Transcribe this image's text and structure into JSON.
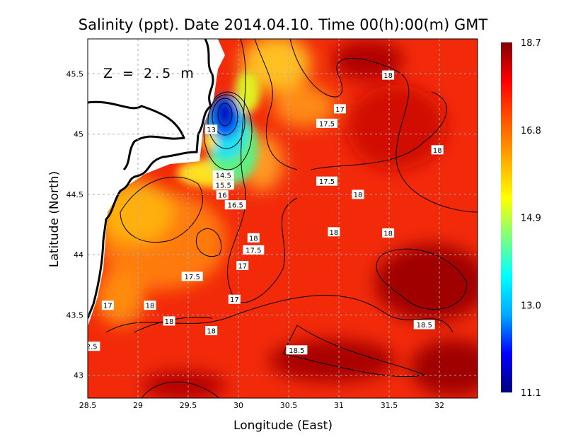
{
  "chart_data": {
    "type": "heatmap",
    "title": "Salinity (ppt). Date 2014.04.10. Time 00(h):00(m) GMT",
    "xlabel": "Longitude (East)",
    "ylabel": "Latitude (North)",
    "xlim": [
      28.5,
      32.38
    ],
    "ylim": [
      42.81,
      45.79
    ],
    "xticks": [
      28.5,
      29,
      29.5,
      30,
      30.5,
      31,
      31.5,
      32
    ],
    "xtick_labels": [
      "28.5",
      "29",
      "29.5",
      "30",
      "30.5",
      "31",
      "31.5",
      "32"
    ],
    "yticks": [
      43,
      43.5,
      44,
      44.5,
      45,
      45.5
    ],
    "ytick_labels": [
      "43",
      "43.5",
      "44",
      "44.5",
      "45",
      "45.5"
    ],
    "grid": true,
    "annotation": "Z = 2.5 m",
    "colorbar": {
      "range": [
        11.1,
        18.7
      ],
      "tick_values": [
        18.7,
        16.8,
        14.9,
        13.0,
        11.1
      ],
      "tick_labels": [
        "18.7",
        "16.8",
        "14.9",
        "13.0",
        "11.1"
      ],
      "placement": "right",
      "colormap": [
        "#00007f",
        "#0000ff",
        "#00aaff",
        "#00ffff",
        "#7fff7f",
        "#ffff00",
        "#ffaa00",
        "#ff5500",
        "#ff0000",
        "#7f0000"
      ]
    },
    "contour_labels": [
      {
        "text": "18",
        "lon": 31.49,
        "lat": 45.49
      },
      {
        "text": "17",
        "lon": 31.01,
        "lat": 45.21
      },
      {
        "text": "17.5",
        "lon": 30.88,
        "lat": 45.09
      },
      {
        "text": "18",
        "lon": 31.98,
        "lat": 44.87
      },
      {
        "text": "13",
        "lon": 29.73,
        "lat": 45.04
      },
      {
        "text": "17.5",
        "lon": 30.88,
        "lat": 44.61
      },
      {
        "text": "14.5",
        "lon": 29.85,
        "lat": 44.66
      },
      {
        "text": "15.5",
        "lon": 29.85,
        "lat": 44.6
      },
      {
        "text": "16",
        "lon": 29.84,
        "lat": 44.56
      },
      {
        "text": "16.5",
        "lon": 29.97,
        "lat": 44.49
      },
      {
        "text": "18",
        "lon": 31.19,
        "lat": 44.5
      },
      {
        "text": "18",
        "lon": 30.95,
        "lat": 44.19
      },
      {
        "text": "18",
        "lon": 31.49,
        "lat": 44.18
      },
      {
        "text": "18",
        "lon": 30.15,
        "lat": 44.14
      },
      {
        "text": "17.5",
        "lon": 30.15,
        "lat": 44.04
      },
      {
        "text": "17",
        "lon": 30.04,
        "lat": 43.91
      },
      {
        "text": "17.5",
        "lon": 29.54,
        "lat": 43.82
      },
      {
        "text": "17",
        "lon": 29.96,
        "lat": 43.63
      },
      {
        "text": "17",
        "lon": 28.7,
        "lat": 43.58
      },
      {
        "text": "18",
        "lon": 29.12,
        "lat": 43.58
      },
      {
        "text": "18",
        "lon": 29.31,
        "lat": 43.45
      },
      {
        "text": "18",
        "lon": 29.73,
        "lat": 43.37
      },
      {
        "text": "18.5",
        "lon": 31.85,
        "lat": 43.42
      },
      {
        "text": "2.5",
        "lon": 28.54,
        "lat": 43.24
      },
      {
        "text": "18.5",
        "lon": 30.58,
        "lat": 43.21
      }
    ]
  }
}
